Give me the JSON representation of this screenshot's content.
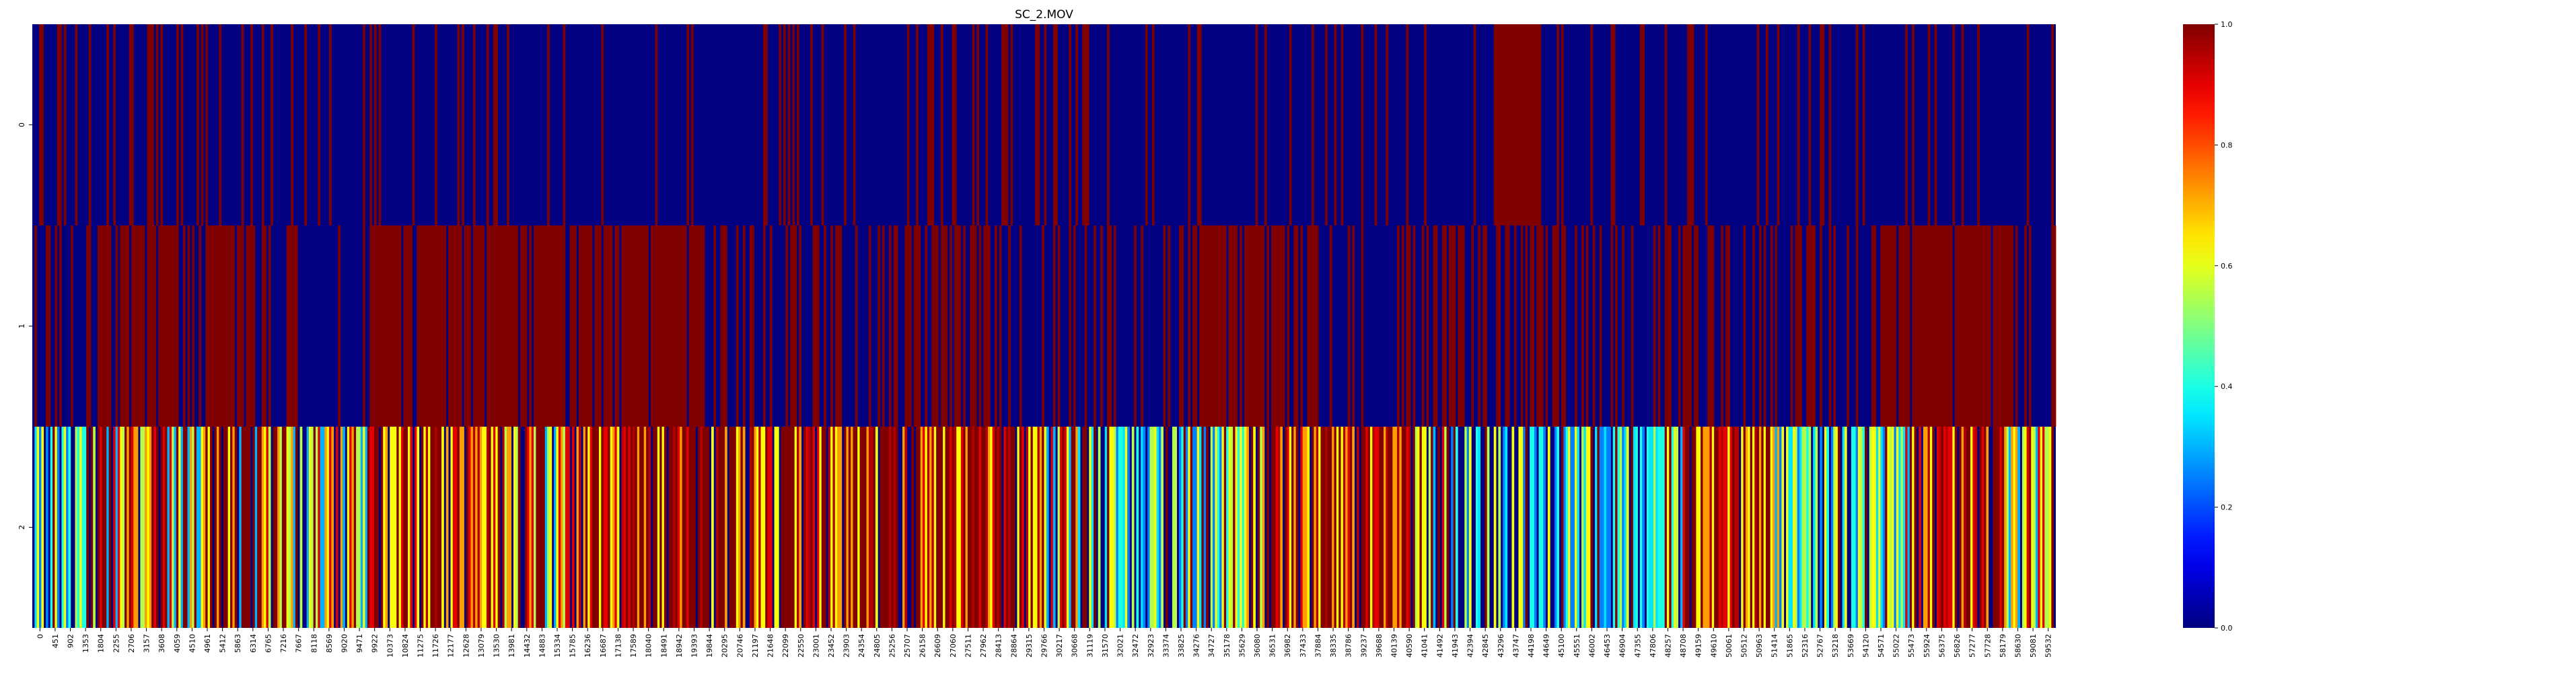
{
  "chart_data": {
    "type": "heatmap",
    "title": "SC_2.MOV",
    "xlabel": "",
    "ylabel": "",
    "rows": [
      "0",
      "1",
      "2"
    ],
    "x_tick_labels": [
      "0",
      "451",
      "902",
      "1353",
      "1804",
      "2255",
      "2706",
      "3157",
      "3608",
      "4059",
      "4510",
      "4961",
      "5412",
      "5863",
      "6314",
      "6765",
      "7216",
      "7667",
      "8118",
      "8569",
      "9020",
      "9471",
      "9922",
      "10373",
      "10824",
      "11275",
      "11726",
      "12177",
      "12628",
      "13079",
      "13530",
      "13981",
      "14432",
      "14883",
      "15334",
      "15785",
      "16236",
      "16687",
      "17138",
      "17589",
      "18040",
      "18491",
      "18942",
      "19393",
      "19844",
      "20295",
      "20746",
      "21197",
      "21648",
      "22099",
      "22550",
      "23001",
      "23452",
      "23903",
      "24354",
      "24805",
      "25256",
      "25707",
      "26158",
      "26609",
      "27060",
      "27511",
      "27962",
      "28413",
      "28864",
      "29315",
      "29766",
      "30217",
      "30668",
      "31119",
      "31570",
      "32021",
      "32472",
      "32923",
      "33374",
      "33825",
      "34276",
      "34727",
      "35178",
      "35629",
      "36080",
      "36531",
      "36982",
      "37433",
      "37884",
      "38335",
      "38786",
      "39237",
      "39688",
      "40139",
      "40590",
      "41041",
      "41492",
      "41943",
      "42394",
      "42845",
      "43296",
      "43747",
      "44198",
      "44649",
      "45100",
      "45551",
      "46002",
      "46453",
      "46904",
      "47355",
      "47806",
      "48257",
      "48708",
      "49159",
      "49610",
      "50061",
      "50512",
      "50963",
      "51414",
      "51865",
      "52316",
      "52767",
      "53218",
      "53669",
      "54120",
      "54571",
      "55022",
      "55473",
      "55924",
      "56375",
      "56826",
      "57277",
      "57728",
      "58179",
      "58630",
      "59081",
      "59532"
    ],
    "colorbar": {
      "colormap": "jet",
      "range": [
        0.0,
        1.0
      ],
      "ticks": [
        "0.0",
        "0.2",
        "0.4",
        "0.6",
        "0.8",
        "1.0"
      ]
    },
    "row_patterns": {
      "0": "mostly 0.0 (dark blue) with sparse 1.0 (dark red) frames; solid 1.0 block around frames 43300-44700",
      "1": "dense alternating segments of 0.0 and 1.0; long 1.0 runs around frames 9900-14600, 14900-18900, 34400-37400, 55300-58600",
      "2": "mixed values 0.2-1.0; low (blue/cyan) regions at start and around 31000-36000 and 42000-55000; high (dark red) runs around 10000-14000 and 16000-30000"
    },
    "grid": false,
    "legend": "colorbar-right"
  }
}
